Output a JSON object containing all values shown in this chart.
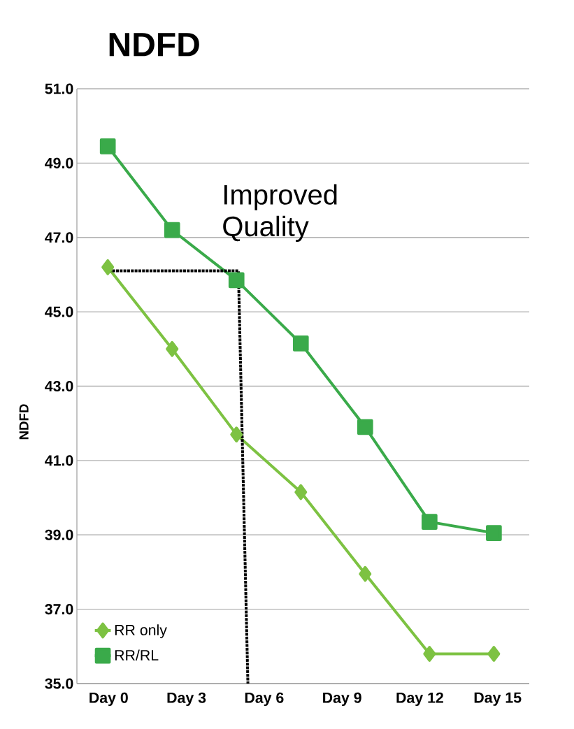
{
  "chart_data": {
    "type": "line",
    "title": "NDFD",
    "ylabel": "NDFD",
    "categories": [
      null,
      null,
      null,
      null,
      null,
      null,
      null
    ],
    "ylim": [
      35,
      51
    ],
    "yticks": [
      {
        "value": 35,
        "label": "35.0"
      },
      {
        "value": 37,
        "label": "37.0"
      },
      {
        "value": 39,
        "label": "39.0"
      },
      {
        "value": 41,
        "label": "41.0"
      },
      {
        "value": 43,
        "label": "43.0"
      },
      {
        "value": 45,
        "label": "45.0"
      },
      {
        "value": 47,
        "label": "47.0"
      },
      {
        "value": 49,
        "label": "49.0"
      },
      {
        "value": 51,
        "label": "51.0"
      }
    ],
    "grid": "y",
    "legend": "bottom left",
    "series": [
      {
        "name": "RR only",
        "color": "#7dc242",
        "marker": "diamond",
        "values": [
          46.2,
          44.0,
          41.7,
          40.15,
          37.95,
          35.8,
          35.8
        ]
      },
      {
        "name": "RR/RL",
        "color": "#3aaa4a",
        "marker": "square",
        "values": [
          49.45,
          47.2,
          45.85,
          44.15,
          41.9,
          39.35,
          39.05
        ]
      }
    ],
    "annotations": [
      "Improved Quality",
      "Day 0",
      "Day 3",
      "Day 6",
      "Day 9",
      "Day 12",
      "Day 15"
    ]
  }
}
